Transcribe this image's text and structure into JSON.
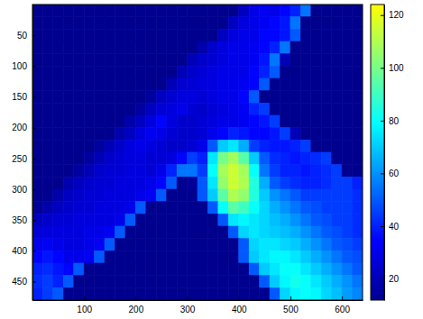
{
  "chart_data": {
    "type": "heatmap",
    "x": [
      10,
      30,
      50,
      70,
      90,
      110,
      130,
      150,
      170,
      190,
      210,
      230,
      250,
      270,
      290,
      310,
      330,
      350,
      370,
      390,
      410,
      430,
      450,
      470,
      490,
      510,
      530,
      550,
      570,
      590,
      610,
      630
    ],
    "y": [
      10,
      30,
      50,
      70,
      90,
      110,
      130,
      150,
      170,
      190,
      210,
      230,
      250,
      270,
      290,
      310,
      330,
      350,
      370,
      390,
      410,
      430,
      450,
      470
    ],
    "z": [
      [
        12,
        12,
        12,
        12,
        12,
        12,
        12,
        12,
        12,
        12,
        12,
        12,
        12,
        12,
        12,
        12,
        12,
        12,
        12,
        12,
        22,
        30,
        32,
        30,
        35,
        40,
        55,
        12,
        12,
        12,
        12,
        12
      ],
      [
        12,
        12,
        12,
        12,
        12,
        12,
        12,
        12,
        12,
        12,
        12,
        12,
        12,
        12,
        12,
        12,
        12,
        12,
        12,
        22,
        28,
        30,
        32,
        35,
        38,
        55,
        12,
        12,
        12,
        12,
        12,
        12
      ],
      [
        12,
        12,
        12,
        12,
        12,
        12,
        12,
        12,
        12,
        12,
        12,
        12,
        12,
        12,
        12,
        12,
        12,
        12,
        22,
        28,
        30,
        30,
        35,
        35,
        38,
        50,
        12,
        12,
        12,
        12,
        12,
        12
      ],
      [
        12,
        12,
        12,
        12,
        12,
        12,
        12,
        12,
        12,
        12,
        12,
        12,
        12,
        12,
        12,
        12,
        18,
        24,
        28,
        30,
        30,
        32,
        35,
        40,
        55,
        12,
        12,
        12,
        12,
        12,
        12,
        12
      ],
      [
        12,
        12,
        12,
        12,
        12,
        12,
        12,
        12,
        12,
        12,
        12,
        12,
        12,
        12,
        12,
        20,
        24,
        26,
        28,
        30,
        30,
        32,
        38,
        55,
        20,
        12,
        12,
        12,
        12,
        12,
        12,
        12
      ],
      [
        12,
        12,
        12,
        12,
        12,
        12,
        12,
        12,
        12,
        12,
        12,
        12,
        12,
        12,
        20,
        24,
        26,
        28,
        30,
        30,
        30,
        35,
        40,
        50,
        12,
        12,
        12,
        12,
        12,
        12,
        12,
        12
      ],
      [
        12,
        12,
        12,
        12,
        12,
        12,
        12,
        12,
        12,
        12,
        12,
        12,
        12,
        20,
        25,
        26,
        28,
        28,
        30,
        30,
        32,
        35,
        50,
        12,
        12,
        12,
        12,
        12,
        12,
        12,
        12,
        12
      ],
      [
        12,
        12,
        12,
        12,
        12,
        12,
        12,
        12,
        12,
        12,
        12,
        15,
        22,
        25,
        28,
        28,
        26,
        28,
        30,
        30,
        35,
        50,
        12,
        12,
        12,
        12,
        12,
        12,
        12,
        12,
        12,
        12
      ],
      [
        12,
        12,
        12,
        12,
        12,
        12,
        12,
        12,
        12,
        12,
        15,
        22,
        26,
        28,
        30,
        26,
        24,
        26,
        28,
        30,
        32,
        40,
        45,
        12,
        12,
        12,
        12,
        12,
        12,
        12,
        12,
        12
      ],
      [
        12,
        12,
        12,
        12,
        12,
        12,
        12,
        12,
        12,
        18,
        22,
        28,
        35,
        28,
        24,
        24,
        26,
        28,
        30,
        30,
        32,
        35,
        38,
        45,
        12,
        12,
        12,
        12,
        12,
        12,
        12,
        12
      ],
      [
        12,
        12,
        12,
        12,
        12,
        12,
        12,
        12,
        18,
        22,
        28,
        32,
        30,
        26,
        24,
        24,
        26,
        30,
        35,
        40,
        38,
        35,
        35,
        38,
        45,
        20,
        12,
        12,
        12,
        12,
        12,
        12
      ],
      [
        12,
        12,
        12,
        12,
        12,
        12,
        15,
        20,
        24,
        28,
        30,
        28,
        26,
        24,
        24,
        26,
        30,
        50,
        70,
        75,
        65,
        45,
        40,
        38,
        38,
        40,
        45,
        12,
        12,
        12,
        12,
        12
      ],
      [
        12,
        12,
        12,
        12,
        12,
        15,
        20,
        24,
        26,
        28,
        28,
        26,
        26,
        28,
        35,
        45,
        40,
        75,
        100,
        108,
        95,
        70,
        50,
        42,
        40,
        38,
        40,
        42,
        45,
        12,
        12,
        12
      ],
      [
        12,
        12,
        12,
        12,
        15,
        20,
        24,
        26,
        26,
        28,
        28,
        26,
        30,
        40,
        55,
        55,
        45,
        80,
        108,
        115,
        108,
        80,
        55,
        45,
        40,
        40,
        38,
        40,
        42,
        45,
        12,
        12
      ],
      [
        12,
        12,
        12,
        18,
        22,
        24,
        26,
        26,
        28,
        28,
        28,
        30,
        35,
        50,
        12,
        14,
        50,
        75,
        105,
        115,
        110,
        85,
        65,
        50,
        45,
        42,
        40,
        40,
        42,
        45,
        45,
        40
      ],
      [
        12,
        12,
        18,
        22,
        24,
        26,
        26,
        28,
        28,
        28,
        30,
        32,
        50,
        12,
        12,
        12,
        50,
        70,
        95,
        110,
        105,
        85,
        70,
        60,
        55,
        50,
        45,
        45,
        45,
        45,
        45,
        42
      ],
      [
        14,
        18,
        22,
        24,
        26,
        26,
        28,
        28,
        28,
        30,
        50,
        12,
        12,
        12,
        12,
        12,
        12,
        50,
        80,
        95,
        90,
        80,
        72,
        65,
        60,
        55,
        50,
        48,
        45,
        45,
        45,
        42
      ],
      [
        22,
        24,
        26,
        26,
        28,
        28,
        28,
        28,
        30,
        50,
        12,
        12,
        12,
        12,
        12,
        12,
        12,
        12,
        50,
        75,
        78,
        75,
        72,
        68,
        65,
        60,
        55,
        50,
        48,
        45,
        45,
        42
      ],
      [
        26,
        28,
        28,
        28,
        28,
        30,
        30,
        32,
        50,
        12,
        12,
        12,
        12,
        12,
        12,
        12,
        12,
        12,
        12,
        50,
        72,
        75,
        72,
        70,
        68,
        65,
        60,
        55,
        50,
        48,
        45,
        42
      ],
      [
        30,
        32,
        30,
        28,
        28,
        30,
        32,
        50,
        12,
        12,
        12,
        12,
        12,
        12,
        12,
        12,
        12,
        12,
        12,
        12,
        50,
        72,
        75,
        75,
        72,
        70,
        65,
        60,
        55,
        50,
        48,
        45
      ],
      [
        35,
        38,
        35,
        30,
        30,
        32,
        50,
        12,
        12,
        12,
        12,
        12,
        12,
        12,
        12,
        12,
        12,
        12,
        12,
        12,
        50,
        70,
        75,
        78,
        78,
        75,
        70,
        65,
        60,
        55,
        50,
        48
      ],
      [
        40,
        42,
        38,
        35,
        50,
        12,
        12,
        12,
        12,
        12,
        12,
        12,
        12,
        12,
        12,
        12,
        12,
        12,
        12,
        12,
        12,
        50,
        70,
        75,
        80,
        80,
        75,
        70,
        65,
        60,
        55,
        50
      ],
      [
        42,
        45,
        40,
        50,
        12,
        12,
        12,
        12,
        12,
        12,
        12,
        12,
        12,
        12,
        12,
        12,
        12,
        12,
        12,
        12,
        12,
        12,
        50,
        70,
        78,
        82,
        80,
        75,
        70,
        65,
        60,
        55
      ],
      [
        40,
        45,
        50,
        12,
        12,
        12,
        12,
        12,
        12,
        12,
        12,
        12,
        12,
        12,
        12,
        12,
        12,
        12,
        12,
        12,
        12,
        12,
        12,
        50,
        72,
        78,
        80,
        78,
        72,
        68,
        62,
        58
      ]
    ],
    "xlim": [
      0,
      640
    ],
    "ylim": [
      480,
      0
    ],
    "xticks": [
      100,
      200,
      300,
      400,
      500,
      600
    ],
    "yticks": [
      50,
      100,
      150,
      200,
      250,
      300,
      350,
      400,
      450
    ],
    "clim": [
      12,
      124
    ],
    "cticks": [
      20,
      40,
      60,
      80,
      100,
      120
    ]
  }
}
